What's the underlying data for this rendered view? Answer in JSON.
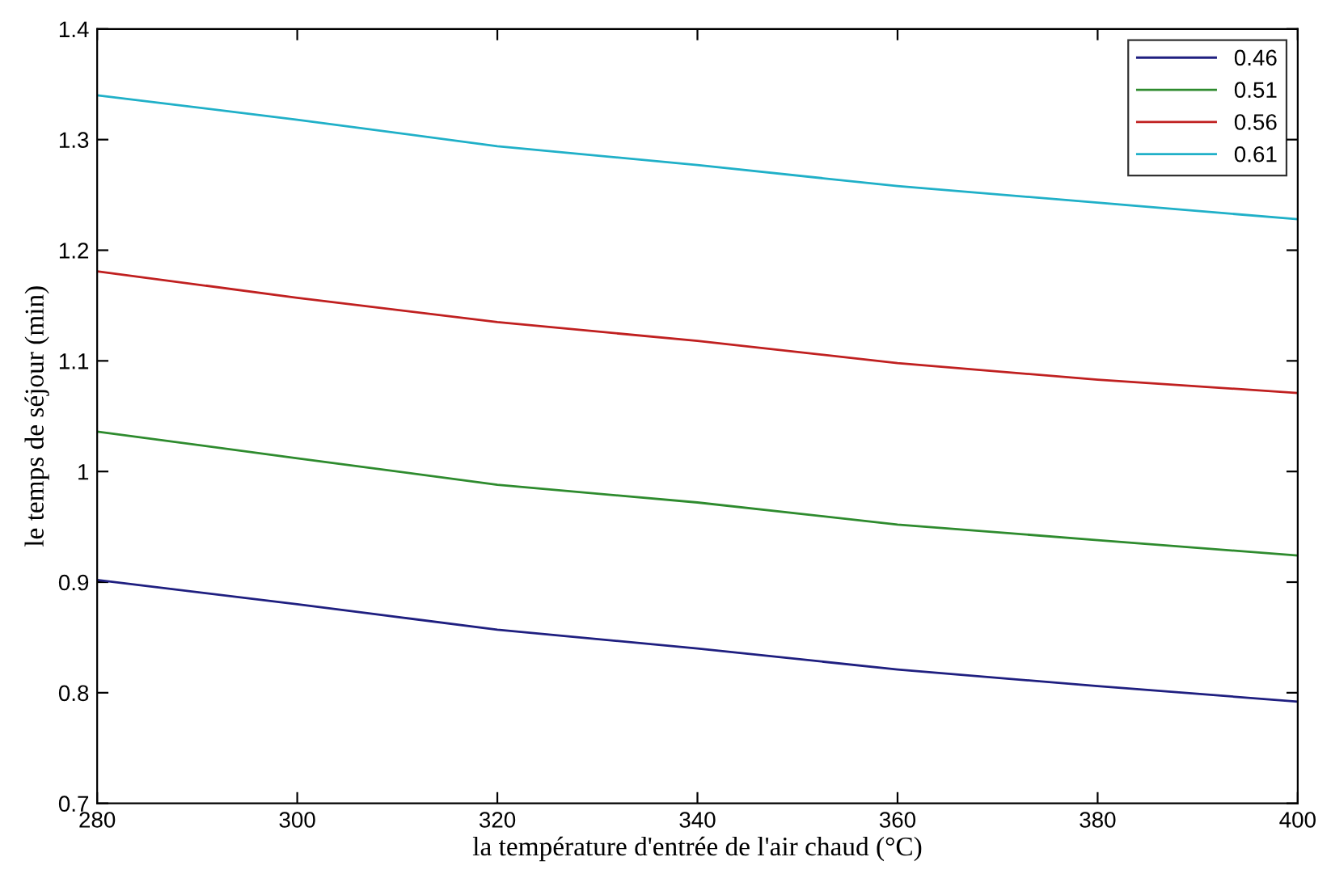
{
  "chart_data": {
    "type": "line",
    "xlabel": "la température d'entrée de l'air chaud (°C)",
    "ylabel": "le temps de séjour (min)",
    "x": [
      280,
      300,
      320,
      340,
      360,
      380,
      400
    ],
    "series": [
      {
        "name": "0.46",
        "color": "#1f1f80",
        "values": [
          0.902,
          0.88,
          0.857,
          0.84,
          0.821,
          0.806,
          0.792
        ]
      },
      {
        "name": "0.51",
        "color": "#2e8b2e",
        "values": [
          1.036,
          1.012,
          0.988,
          0.972,
          0.952,
          0.938,
          0.924
        ]
      },
      {
        "name": "0.56",
        "color": "#c02020",
        "values": [
          1.181,
          1.157,
          1.135,
          1.118,
          1.098,
          1.083,
          1.071
        ]
      },
      {
        "name": "0.61",
        "color": "#20b0c8",
        "values": [
          1.34,
          1.318,
          1.294,
          1.277,
          1.258,
          1.243,
          1.228
        ]
      }
    ],
    "xlim": [
      280,
      400
    ],
    "xticks": [
      280,
      300,
      320,
      340,
      360,
      380,
      400
    ],
    "ylim": [
      0.7,
      1.4
    ],
    "yticks": [
      0.7,
      0.8,
      0.9,
      1,
      1.1,
      1.2,
      1.3,
      1.4
    ],
    "grid": false,
    "legend": "top right",
    "marker": "none",
    "line_style": "solid"
  }
}
